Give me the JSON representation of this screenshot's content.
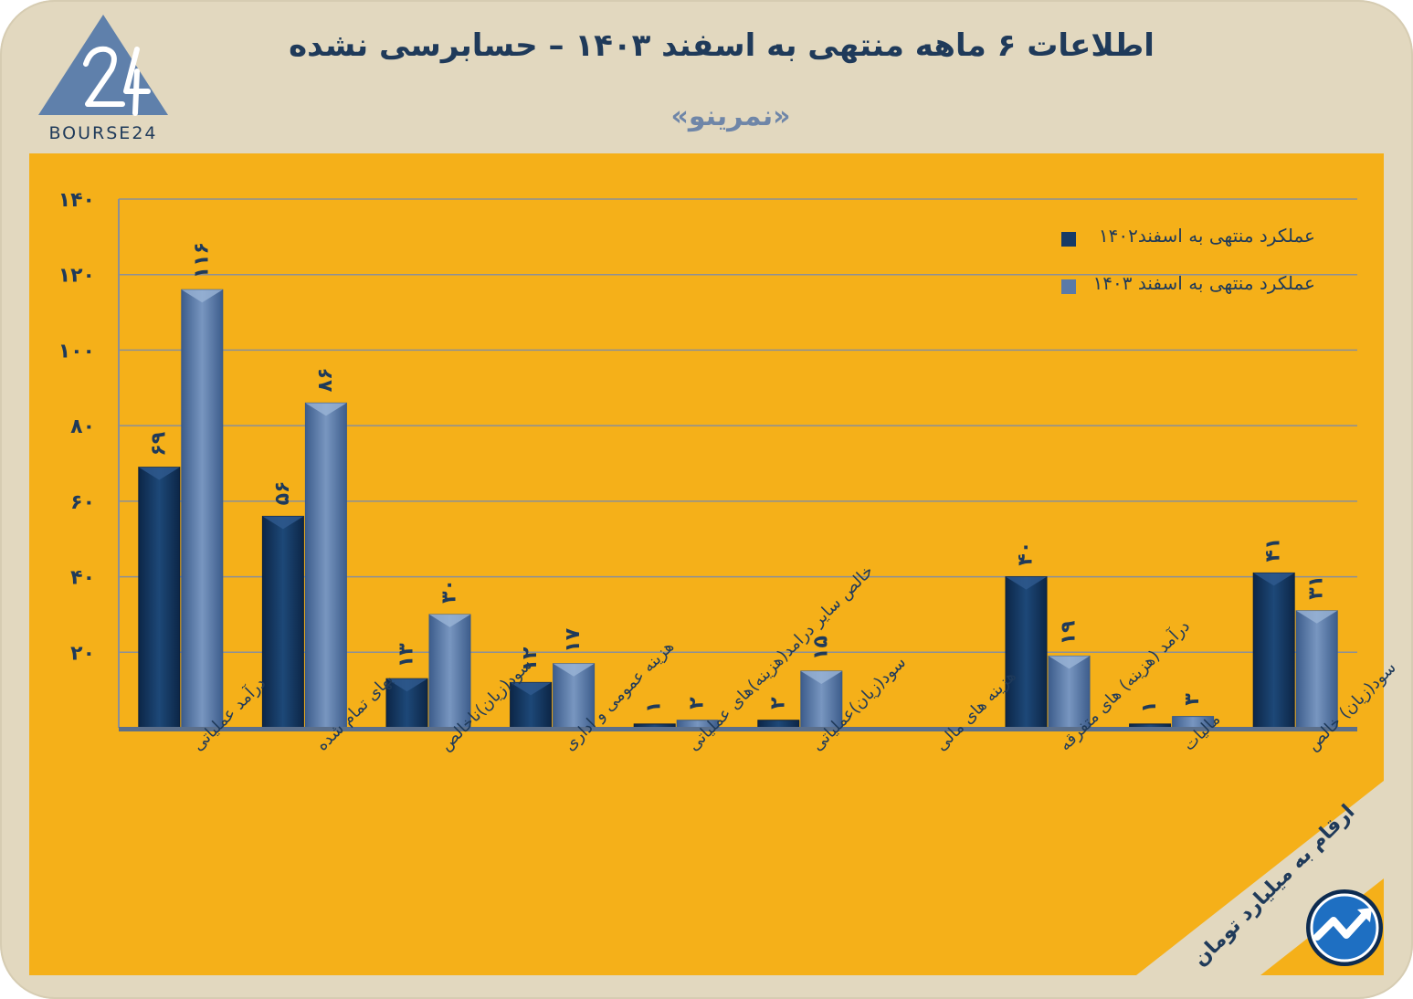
{
  "header": {
    "title": "اطلاعات ۶ ماهه منتهی به اسفند ۱۴۰۳ – حسابرسی نشده",
    "subtitle": "«نمرینو»",
    "logo_text": "BOURSE24",
    "units_note": "ارقام به میلیارد تومان"
  },
  "colors": {
    "background": "#e2d8bf",
    "panel": "#f5b019",
    "series_1402": "#163a66",
    "series_1403": "#5a7aa8",
    "text": "#1f3a5a"
  },
  "chart_data": {
    "type": "bar",
    "title": "",
    "xlabel": "",
    "ylabel": "",
    "ylim": [
      0,
      140
    ],
    "yticks": [
      20,
      40,
      60,
      80,
      100,
      120,
      140
    ],
    "ytick_labels": [
      "۲۰",
      "۴۰",
      "۶۰",
      "۸۰",
      "۱۰۰",
      "۱۲۰",
      "۱۴۰"
    ],
    "grid": true,
    "legend_position": "top-right",
    "categories": [
      "درآمد عملیاتی",
      "بهای تمام شده",
      "سود(زیان)ناخالص",
      "هزینه عمومی و اداری",
      "خالص سایر درامد(هزینه)های عملیاتی",
      "سود(زیان)عملیاتی",
      "هزینه های مالی",
      "درآمد (هزینه) های متفرقه",
      "مالیات",
      "سود(زیان) خالص"
    ],
    "series": [
      {
        "name": "عملکرد منتهی به اسفند۱۴۰۲",
        "values": [
          69,
          56,
          13,
          12,
          1,
          2,
          0,
          40,
          1,
          41
        ],
        "labels": [
          "۶۹",
          "۵۶",
          "۱۳",
          "۱۲",
          "۱",
          "۲",
          "",
          "۴۰",
          "۱",
          "۴۱"
        ]
      },
      {
        "name": "عملکرد منتهی به اسفند ۱۴۰۳",
        "values": [
          116,
          86,
          30,
          17,
          2,
          15,
          0,
          19,
          3,
          31
        ],
        "labels": [
          "۱۱۶",
          "۸۶",
          "۳۰",
          "۱۷",
          "۲",
          "۱۵",
          "",
          "۱۹",
          "۳",
          "۳۱"
        ]
      }
    ]
  }
}
